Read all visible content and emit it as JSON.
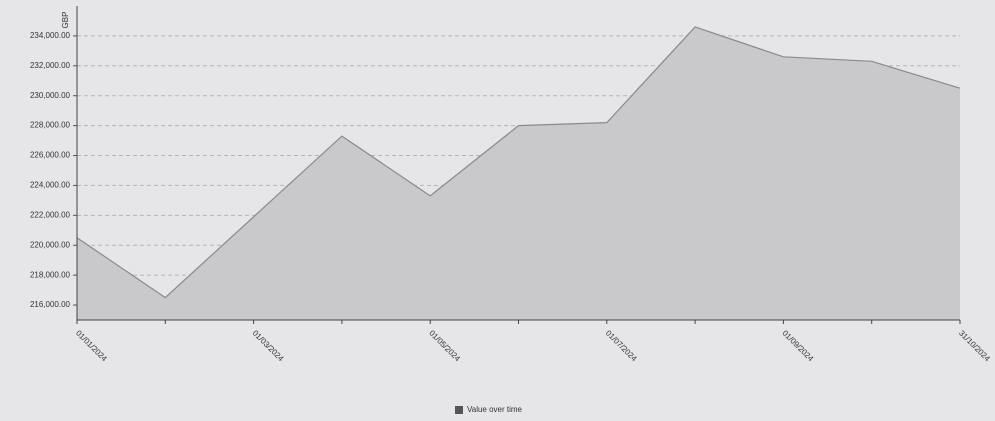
{
  "chart_data": {
    "type": "area",
    "y_label": "GBP",
    "categories": [
      "01/01/2024",
      null,
      "01/03/2024",
      null,
      "01/05/2024",
      null,
      "01/07/2024",
      null,
      "01/09/2024",
      null,
      "31/10/2024"
    ],
    "series": [
      {
        "name": "Value over time",
        "color": "#c9c9cb",
        "line_color": "#8a8a8c",
        "values": [
          220500,
          216500,
          221900,
          227300,
          223300,
          228000,
          228200,
          234600,
          232600,
          232300,
          230500
        ]
      }
    ],
    "ylim": [
      215000,
      236000
    ],
    "yticks": [
      {
        "value": 216000,
        "label": "216,000.00"
      },
      {
        "value": 218000,
        "label": "218,000.00"
      },
      {
        "value": 220000,
        "label": "220,000.00"
      },
      {
        "value": 222000,
        "label": "222,000.00"
      },
      {
        "value": 224000,
        "label": "224,000.00"
      },
      {
        "value": 226000,
        "label": "226,000.00"
      },
      {
        "value": 228000,
        "label": "228,000.00"
      },
      {
        "value": 230000,
        "label": "230,000.00"
      },
      {
        "value": 232000,
        "label": "232,000.00"
      },
      {
        "value": 234000,
        "label": "234,000.00"
      }
    ],
    "grid": true,
    "legend": "bottom"
  }
}
